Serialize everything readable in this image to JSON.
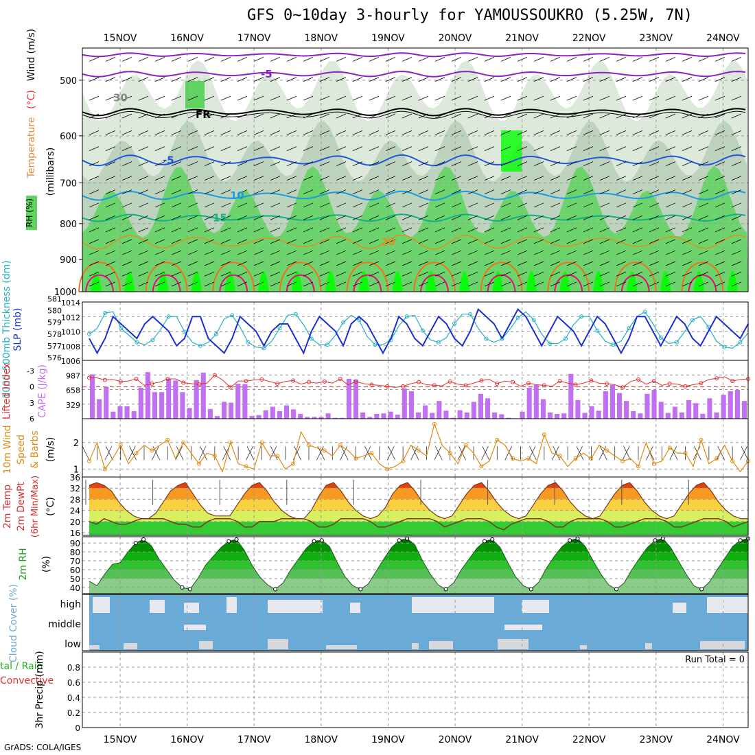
{
  "title": "GFS 0~10day 3-hourly for YAMOUSSOUKRO (5.25W, 7N)",
  "credit": "GrADS: COLA/IGES",
  "colors": {
    "rh_light": "#d7e6d5",
    "rh_mid": "#b9cfb7",
    "rh_green": "#5fd35f",
    "rh_bright": "#00ff00",
    "temp_m5_upper": "#8a20c8",
    "temp_fr": "#000000",
    "temp_m5": "#2255dd",
    "temp_10": "#1a9be0",
    "temp_15": "#10b080",
    "temp_20": "#e09020",
    "temp_25": "#f07020",
    "temp_30": "#e0107a",
    "slp": "#1a2fd0",
    "thickness": "#20b0c0",
    "cape": "#c070f0",
    "lifted": "#e03030",
    "wind10": "#e08a10",
    "cloud": "#6aaad6",
    "cloud_bar": "#e8e8f0"
  },
  "chart_data": [
    {
      "type": "contour",
      "name": "upper-air",
      "x_ticks": [
        "15NOV",
        "16NOV",
        "17NOV",
        "18NOV",
        "19NOV",
        "20NOV",
        "21NOV",
        "22NOV",
        "23NOV",
        "24NOV"
      ],
      "ylabel_parts": [
        "RH (%)",
        "Temperature",
        "(°C)",
        "Wind (m/s)",
        "(millibars)"
      ],
      "y_ticks": [
        500,
        600,
        700,
        800,
        900,
        1000
      ],
      "ylim": [
        1000,
        450
      ],
      "y_scale": "log",
      "isotherm_labels": [
        {
          "text": "-5",
          "level": 490
        },
        {
          "text": "FR",
          "level": 560
        },
        {
          "text": "-5",
          "level": 650
        },
        {
          "text": "10",
          "level": 730
        },
        {
          "text": "15",
          "level": 785
        },
        {
          "text": "20",
          "level": 850
        },
        {
          "text": "30",
          "level": 530
        }
      ]
    },
    {
      "type": "line",
      "name": "slp-thickness",
      "ylabel_left": "1000-500mb Thickness (dm)",
      "ylabel_right": "SLP (mb)",
      "left_ticks": [
        576,
        577,
        578,
        579,
        580,
        581
      ],
      "right_ticks": [
        1006,
        1008,
        1010,
        1012,
        1014
      ],
      "right_ylim": [
        1006,
        1014
      ],
      "series": [
        {
          "name": "SLP",
          "values": [
            1009,
            1007,
            1009,
            1012,
            1011,
            1010,
            1009,
            1011,
            1012,
            1011,
            1010,
            1008,
            1009,
            1012,
            1012,
            1009,
            1008,
            1007,
            1009,
            1012,
            1011,
            1010,
            1008,
            1010,
            1011,
            1011,
            1009,
            1007,
            1010,
            1012,
            1011,
            1010,
            1008,
            1011,
            1012,
            1011,
            1009,
            1007,
            1009,
            1012,
            1011,
            1009,
            1008,
            1010,
            1012,
            1011,
            1009,
            1008,
            1010,
            1013,
            1012,
            1011,
            1009,
            1011,
            1013,
            1012,
            1010,
            1008,
            1010,
            1012,
            1011,
            1010,
            1008,
            1010,
            1012,
            1011,
            1009,
            1007,
            1009,
            1012,
            1012,
            1010,
            1008,
            1010,
            1012,
            1011,
            1009,
            1008,
            1010,
            1012,
            1011,
            1010,
            1009,
            1011
          ]
        },
        {
          "name": "Thickness",
          "values": [
            578,
            578.5,
            579.8,
            579.9,
            578.5,
            577.9,
            577.3,
            577.1,
            577.5,
            578.4,
            579.5,
            579.5,
            578.2,
            577.3,
            577,
            577.3,
            578,
            579.3,
            579.6,
            578.6,
            577.3,
            576.9,
            576.8,
            577.4,
            578.5,
            579.6,
            579.7,
            578.8,
            577.6,
            577.1,
            577.1,
            577.9,
            579,
            579.6,
            579.2,
            577.8,
            577.1,
            577.1,
            577.5,
            578.7,
            579.5,
            579.6,
            578.3,
            577.5,
            577.3,
            577.7,
            578.9,
            579.7,
            579.7,
            578.5,
            577.6,
            577.3,
            577.6,
            578.4,
            579.4,
            579.9,
            579.2,
            578,
            577.2,
            577.2,
            577.6,
            578.8,
            579.5,
            579.5,
            578.3,
            577.4,
            577.1,
            577.4,
            578.5,
            579.5,
            579.9,
            578.9,
            577.7,
            577.2,
            577.3,
            578.2,
            579.2,
            579.5,
            578.6,
            577.4,
            576.9,
            576.8,
            577.3,
            578.1
          ]
        }
      ]
    },
    {
      "type": "bar",
      "name": "cape-lifted",
      "ylabel_left": "Lifted Index",
      "ylabel_right": "CAPE (J/kg)",
      "left_ticks": [
        -3,
        0,
        3,
        6
      ],
      "right_ticks": [
        987,
        658,
        329
      ],
      "cape_ylim": [
        0,
        1316
      ],
      "lifted_ylim": [
        6,
        -5
      ],
      "series": [
        {
          "name": "CAPE",
          "values": [
            1000,
            440,
            720,
            160,
            280,
            280,
            170,
            700,
            1050,
            600,
            600,
            900,
            860,
            600,
            240,
            870,
            1040,
            220,
            60,
            380,
            360,
            790,
            780,
            60,
            80,
            190,
            270,
            170,
            300,
            210,
            110,
            40,
            40,
            40,
            120,
            20,
            20,
            900,
            880,
            140,
            40,
            110,
            120,
            160,
            90,
            680,
            620,
            140,
            300,
            130,
            400,
            180,
            20,
            190,
            140,
            380,
            560,
            460,
            140,
            100,
            20,
            10,
            160,
            700,
            760,
            440,
            140,
            110,
            120,
            1010,
            420,
            130,
            280,
            180,
            620,
            760,
            580,
            400,
            170,
            120,
            560,
            650,
            380,
            130,
            270,
            140,
            420,
            350,
            110,
            460,
            140,
            540,
            620,
            650,
            400
          ]
        },
        {
          "name": "Lifted Index",
          "values": [
            -1.7,
            -1.7,
            -1.3,
            -1.4,
            -1.0,
            -1.1,
            -1.5,
            -0.3,
            -0.6,
            -0.9,
            -1.5,
            -1.5,
            -0.8,
            -0.6,
            -0.5,
            -0.7,
            -2.2,
            -1.3,
            0.1,
            -1.1,
            -1.1,
            -1.3,
            -1.4,
            -1.0,
            -0.6,
            -1.0,
            -1.2,
            -0.5,
            -0.9,
            -0.7,
            -1.0,
            -0.7,
            -1.5,
            -0.4,
            -1.0,
            -0.6,
            -0.4,
            -0.3,
            -0.1,
            0.1,
            -0.1,
            -0.6,
            -0.9,
            -0.4,
            -0.3,
            -0.2,
            -1.0,
            -0.5,
            -0.3,
            -0.7,
            -1.2,
            -1.4,
            -0.6,
            -1.1,
            -0.9,
            -0.1,
            -0.7,
            -0.4,
            -0.3,
            -0.1,
            -1.1,
            -0.7,
            -0.4,
            -0.7,
            -1.2,
            -0.7,
            -0.6,
            -0.4,
            0.1,
            -1.0,
            -1.4,
            -0.5,
            -1.1,
            -0.3,
            -0.6,
            -0.5,
            -0.1,
            -0.4,
            -0.7,
            -1.4,
            -1.6,
            -1.9,
            -1.1,
            -1.4,
            -1.5
          ]
        }
      ]
    },
    {
      "type": "line",
      "name": "wind10m",
      "ylabel": "10m Wind Speed & Barbs (m/s)",
      "y_ticks": [
        1,
        2
      ],
      "ylim": [
        0.7,
        2.9
      ],
      "series": [
        {
          "name": "Speed",
          "values": [
            1.3,
            2.0,
            1.0,
            1.4,
            1.9,
            1.2,
            1.6,
            1.9,
            1.7,
            1.9,
            2.1,
            1.4,
            2.0,
            1.6,
            1.2,
            1.6,
            1.5,
            0.9,
            2.0,
            1.2,
            1.1,
            1.0,
            2.0,
            1.5,
            1.5,
            1.0,
            1.2,
            2.4,
            1.9,
            1.8,
            1.7,
            1.5,
            1.9,
            1.7,
            1.4,
            1.5,
            1.6,
            1.2,
            1.0,
            1.1,
            1.3,
            1.9,
            1.7,
            1.5,
            2.7,
            1.9,
            1.6,
            1.2,
            1.9,
            1.6,
            1.1,
            1.3,
            2.1,
            1.9,
            1.4,
            1.3,
            1.4,
            1.2,
            2.3,
            1.6,
            1.5,
            1.1,
            1.4,
            1.6,
            1.4,
            1.9,
            1.7,
            1.5,
            1.3,
            1.4,
            1.1,
            2.0,
            1.2,
            1.3,
            1.8,
            1.6,
            1.6,
            1.1,
            2.1,
            1.2,
            1.4,
            1.9,
            1.3,
            0.9,
            1.3
          ]
        }
      ]
    },
    {
      "type": "area",
      "name": "temp-dewpoint",
      "ylabel": "2m Temp 2m DewPt (6hr Min/Max) (°C)",
      "y_ticks": [
        16,
        20,
        24,
        28,
        32,
        36
      ],
      "ylim": [
        15,
        36
      ],
      "series": [
        {
          "name": "2m Temp",
          "values": [
            33,
            34,
            33,
            31,
            27,
            24,
            22,
            21,
            21,
            23,
            27,
            31,
            33,
            34,
            30,
            26,
            23,
            22,
            22,
            22,
            26,
            30,
            33,
            34,
            31,
            27,
            24,
            22,
            21,
            21,
            24,
            29,
            33,
            34,
            31,
            27,
            24,
            22,
            21,
            22,
            25,
            30,
            33,
            34,
            31,
            27,
            24,
            22,
            21,
            22,
            26,
            30,
            33,
            34,
            31,
            27,
            24,
            22,
            21,
            22,
            26,
            30,
            33,
            34,
            31,
            27,
            24,
            22,
            21,
            22,
            26,
            30,
            33,
            34,
            31,
            27,
            24,
            22,
            21,
            22,
            26,
            30,
            33,
            34,
            31,
            27,
            24,
            22,
            21,
            21
          ]
        },
        {
          "name": "2m DewPt",
          "values": [
            20,
            19,
            21,
            20,
            19,
            19,
            20,
            21,
            21,
            21,
            21,
            20,
            19,
            19,
            18,
            18,
            20,
            21,
            21,
            21,
            20,
            18,
            18,
            20,
            20,
            20,
            21,
            21,
            21,
            21,
            20,
            18,
            18,
            19,
            21,
            21,
            21,
            21,
            20,
            18,
            18,
            19,
            20,
            21,
            21,
            21,
            21,
            20,
            18,
            19,
            20,
            21,
            21,
            21,
            20,
            18,
            17,
            19,
            20,
            21,
            21,
            21,
            20,
            18,
            18,
            20,
            21,
            21,
            21,
            21,
            20,
            18,
            18,
            19,
            20,
            21,
            21,
            21,
            20,
            18,
            18,
            19,
            20,
            21,
            21,
            21,
            20,
            18,
            19,
            20
          ]
        }
      ]
    },
    {
      "type": "area",
      "name": "rh2m",
      "ylabel": "2m RH (%)",
      "y_ticks": [
        40,
        50,
        60,
        70,
        80,
        90
      ],
      "ylim": [
        33,
        97
      ],
      "series": [
        {
          "name": "2m RH",
          "values": [
            47,
            42,
            55,
            66,
            68,
            80,
            90,
            94,
            87,
            72,
            60,
            48,
            40,
            38,
            50,
            65,
            75,
            85,
            92,
            94,
            82,
            65,
            52,
            43,
            38,
            45,
            60,
            72,
            84,
            92,
            93,
            86,
            68,
            52,
            42,
            38,
            44,
            58,
            72,
            85,
            93,
            95,
            88,
            70,
            55,
            43,
            38,
            45,
            60,
            72,
            84,
            92,
            94,
            85,
            68,
            52,
            42,
            38,
            46,
            62,
            75,
            86,
            93,
            95,
            86,
            70,
            55,
            43,
            38,
            45,
            60,
            73,
            85,
            93,
            95,
            85,
            70,
            55,
            42,
            38,
            46,
            60,
            73,
            86,
            93,
            95
          ]
        }
      ]
    },
    {
      "type": "bar",
      "name": "cloud-cover",
      "ylabel": "Cloud Cover (%)",
      "y_ticks": [
        "high",
        "middle",
        "low"
      ]
    },
    {
      "type": "bar",
      "name": "precip",
      "ylabel_left": "Total / Rain Convective",
      "ylabel": "3hr Precip (mm)",
      "y_ticks": [
        0,
        0.2,
        0.4,
        0.6,
        0.8
      ],
      "ylim": [
        0,
        1
      ],
      "annotation": "Run Total = 0"
    }
  ]
}
